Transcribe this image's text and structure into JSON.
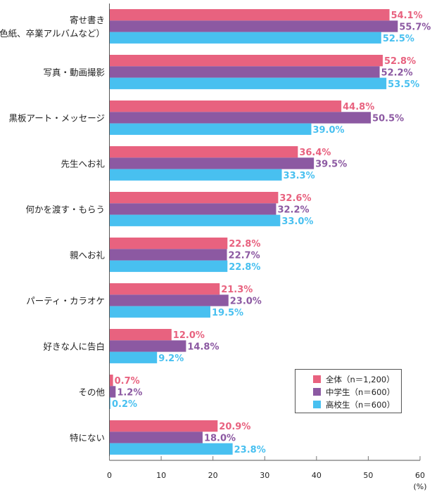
{
  "chart_data": {
    "type": "bar",
    "orientation": "horizontal",
    "categories": [
      "寄せ書き\n（色紙、卒業アルバムなど）",
      "写真・動画撮影",
      "黒板アート・メッセージ",
      "先生へお礼",
      "何かを渡す・もらう",
      "親へお礼",
      "パーティ・カラオケ",
      "好きな人に告白",
      "その他",
      "特にない"
    ],
    "series": [
      {
        "name": "全体（n＝1,200）",
        "color": "#e8627f",
        "values": [
          54.1,
          52.8,
          44.8,
          36.4,
          32.6,
          22.8,
          21.3,
          12.0,
          0.7,
          20.9
        ]
      },
      {
        "name": "中学生（n＝600）",
        "color": "#8c59a2",
        "values": [
          55.7,
          52.2,
          50.5,
          39.5,
          32.2,
          22.7,
          23.0,
          14.8,
          1.2,
          18.0
        ]
      },
      {
        "name": "高校生（n＝600）",
        "color": "#48c0f0",
        "values": [
          52.5,
          53.5,
          39.0,
          33.3,
          33.0,
          22.8,
          19.5,
          9.2,
          0.2,
          23.8
        ]
      }
    ],
    "xlim": [
      0,
      60
    ],
    "xticks": [
      0,
      10,
      20,
      30,
      40,
      50,
      60
    ],
    "xunit": "(%)",
    "grid": false,
    "legend": "bottom-right"
  }
}
